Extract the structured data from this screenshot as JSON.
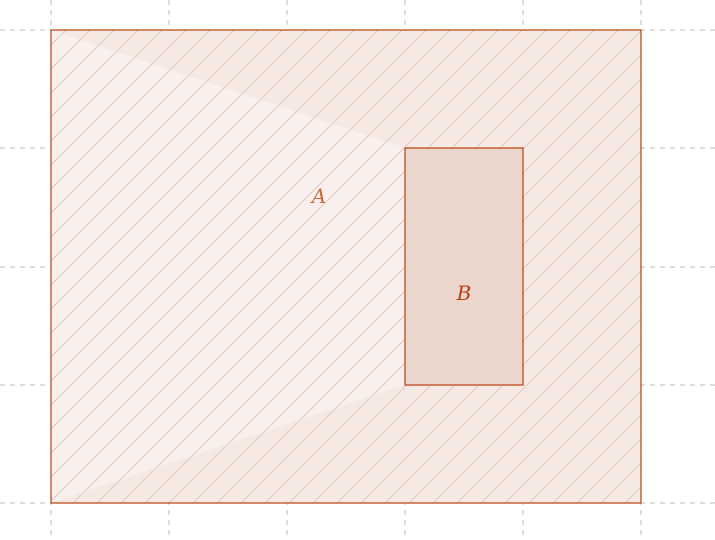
{
  "diagram": {
    "region_a": {
      "label": "A"
    },
    "region_b": {
      "label": "B"
    },
    "colors": {
      "stroke": "#b8400e",
      "region_a_fill": "#f5e7e2",
      "region_a_highlight": "#ffffff",
      "region_b_fill": "#ead6cd",
      "region_a_label": "#c76a3e",
      "region_b_label": "#b8400e",
      "grid": "#bdbdbd",
      "hatch": "#dcc3b8"
    },
    "grid": {
      "style": "dashed"
    }
  }
}
